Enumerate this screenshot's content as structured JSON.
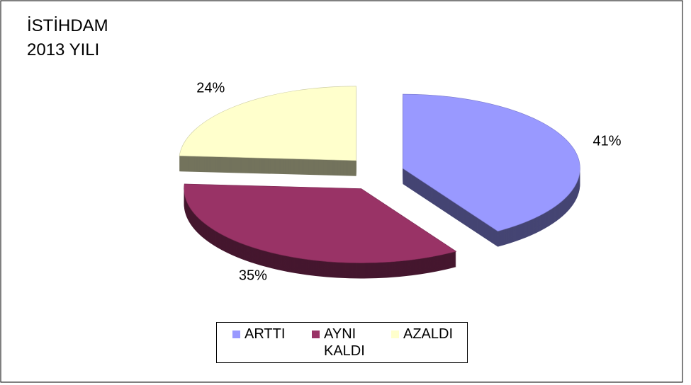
{
  "chart_data": {
    "type": "pie",
    "title": [
      "İSTİHDAM",
      "2013 YILI"
    ],
    "categories": [
      "ARTTI",
      "AYNI KALDI",
      "AZALDI"
    ],
    "values": [
      41,
      35,
      24
    ],
    "value_labels": [
      "41%",
      "35%",
      "24%"
    ],
    "colors": [
      "#9999ff",
      "#993366",
      "#ffffcc"
    ],
    "legend": "bottom"
  }
}
